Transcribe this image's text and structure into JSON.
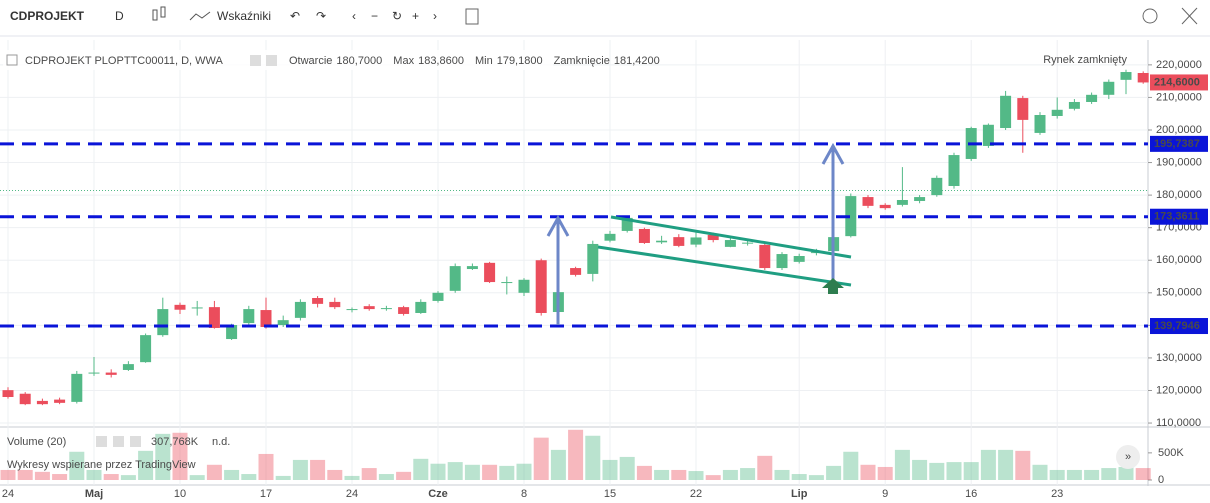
{
  "toolbar": {
    "symbol": "CDPROJEKT",
    "interval": "D",
    "indicators": "Wskaźniki"
  },
  "chart_data": {
    "type": "candlestick",
    "title": "CDPROJEKT PLOPTTC00011, D, WWA",
    "ohlc_legend": [
      {
        "label": "Otwarcie",
        "value": "180,7000"
      },
      {
        "label": "Max",
        "value": "183,8600"
      },
      {
        "label": "Min",
        "value": "179,1800"
      },
      {
        "label": "Zamknięcie",
        "value": "181,4200"
      }
    ],
    "status": "Rynek zamknięty",
    "watermark": "Wykresy wspierane przez TradingView",
    "categories": [
      "24",
      null,
      null,
      null,
      null,
      "Maj",
      null,
      null,
      null,
      null,
      "10",
      null,
      null,
      null,
      null,
      "17",
      null,
      null,
      null,
      null,
      "24",
      null,
      null,
      null,
      null,
      "Cze",
      null,
      null,
      null,
      null,
      "8",
      null,
      null,
      null,
      null,
      "15",
      null,
      null,
      null,
      null,
      "22",
      null,
      null,
      null,
      null,
      null,
      "Lip",
      null,
      null,
      null,
      null,
      "9",
      null,
      null,
      null,
      null,
      "16",
      null,
      null,
      null,
      null,
      "23",
      null,
      null,
      null,
      null,
      null
    ],
    "open": [
      120.1,
      119,
      116.8,
      117.2,
      116.5,
      125.3,
      125.5,
      126.3,
      128.7,
      137,
      146.3,
      145.3,
      145.6,
      135.8,
      140.7,
      144.7,
      140.1,
      142.3,
      148.4,
      147.2,
      144.7,
      145.9,
      145.2,
      145.6,
      143.8,
      147.5,
      150.6,
      157.3,
      159.2,
      153.3,
      150,
      160,
      144.1,
      157.6,
      155.8,
      166,
      169,
      169.6,
      165.5,
      167.1,
      164.8,
      167.8,
      164.1,
      165.3,
      164.7,
      157.6,
      159.5,
      162.5,
      162.8,
      167.4,
      179.4,
      177,
      177,
      178.2,
      180,
      182.8,
      191.1,
      195.1,
      200.6,
      209.8,
      199.1,
      204.3,
      206.5,
      208.6,
      210.8,
      215.4,
      217.5
    ],
    "high": [
      121,
      119.5,
      117.5,
      117.8,
      126,
      130.3,
      126.5,
      129,
      137.5,
      148.5,
      147,
      147.5,
      147.5,
      140.5,
      146,
      148.5,
      143,
      148,
      149,
      148.5,
      145.5,
      146.5,
      146,
      146,
      148,
      150.5,
      159,
      159,
      159.5,
      155,
      154.5,
      160.5,
      150.5,
      158,
      166,
      169,
      173.5,
      170,
      167.5,
      168,
      168.5,
      168.5,
      167,
      166,
      165,
      162.5,
      162,
      163.5,
      167.5,
      180.5,
      180,
      177.5,
      188.6,
      180,
      186,
      193,
      201,
      202,
      212,
      210.5,
      205.5,
      210,
      209.5,
      211.5,
      215.5,
      218.5,
      218
    ],
    "low": [
      117.5,
      115.5,
      115.5,
      115.8,
      116,
      124.5,
      124,
      126,
      128.5,
      136.5,
      143.5,
      143,
      139,
      135.5,
      140,
      139,
      139.5,
      141.5,
      145.5,
      145,
      144,
      144.5,
      144.5,
      143,
      143.5,
      147,
      150,
      157,
      153,
      149.5,
      149,
      143,
      143.5,
      155,
      153.5,
      165.5,
      168.5,
      165,
      165,
      164,
      164,
      165.5,
      164,
      164.5,
      157,
      157,
      159,
      161.5,
      162,
      167,
      176,
      175.5,
      176.5,
      177.5,
      179.5,
      182,
      190.5,
      194.5,
      200,
      193,
      198.5,
      203.5,
      206,
      208,
      209.5,
      211,
      214.2
    ],
    "close": [
      118,
      115.8,
      115.8,
      116.2,
      125.1,
      125.5,
      124.8,
      128.1,
      137,
      145,
      144.8,
      145.5,
      139.2,
      140.1,
      145,
      139.5,
      141.6,
      147.2,
      146.6,
      145.6,
      145,
      145,
      145.3,
      143.5,
      147.2,
      150,
      158.2,
      158.2,
      153.3,
      153.3,
      154,
      143.8,
      150.2,
      155.5,
      165,
      168.1,
      173,
      165.3,
      166,
      164.4,
      167,
      166.2,
      166.2,
      165.4,
      157.6,
      161.9,
      161.3,
      162.5,
      167.1,
      179.7,
      176.7,
      176,
      178.5,
      179.4,
      185.3,
      192.3,
      200.6,
      201.6,
      210.5,
      203.1,
      204.6,
      206.2,
      208.6,
      210.8,
      214.8,
      217.8,
      214.6
    ],
    "up_color": "#53b987",
    "down_color": "#eb4d5c",
    "ylim": [
      109.4,
      226.1
    ],
    "yticks": [
      {
        "value": 110,
        "label": "110,0000"
      },
      {
        "value": 120,
        "label": "120,0000"
      },
      {
        "value": 130,
        "label": "130,0000"
      },
      {
        "value": 140,
        "label": "140,0000"
      },
      {
        "value": 150,
        "label": "150,0000"
      },
      {
        "value": 160,
        "label": "160,0000"
      },
      {
        "value": 170,
        "label": "170,0000"
      },
      {
        "value": 180,
        "label": "180,0000"
      },
      {
        "value": 190,
        "label": "190,0000"
      },
      {
        "value": 200,
        "label": "200,0000"
      },
      {
        "value": 210,
        "label": "210,0000"
      },
      {
        "value": 220,
        "label": "220,0000"
      }
    ],
    "grid": true,
    "hlines": [
      {
        "value": 195.7387,
        "label": "195,7387"
      },
      {
        "value": 173.3611,
        "label": "173,3611"
      },
      {
        "value": 139.7946,
        "label": "139,7946"
      }
    ],
    "hline_color": "#0a14d8",
    "price_line": 181.42,
    "last_price": {
      "value": 214.6,
      "label": "214,6000"
    },
    "volume": {
      "title": "Volume (20)",
      "last_text": "307,768K",
      "na_text": "n.d.",
      "values": [
        185,
        185,
        150,
        110,
        520,
        185,
        110,
        90,
        537,
        850,
        870,
        90,
        280,
        185,
        110,
        480,
        75,
        370,
        370,
        185,
        75,
        220,
        110,
        150,
        390,
        300,
        330,
        280,
        280,
        260,
        300,
        780,
        555,
        925,
        815,
        370,
        425,
        260,
        185,
        185,
        165,
        90,
        185,
        220,
        445,
        185,
        110,
        90,
        260,
        520,
        280,
        240,
        555,
        370,
        315,
        330,
        330,
        555,
        555,
        537,
        280,
        185,
        185,
        185,
        220,
        240,
        220
      ],
      "ylim": [
        0,
        1050
      ],
      "yticks": [
        0,
        {
          "value": 500,
          "label": "500K"
        }
      ]
    }
  }
}
